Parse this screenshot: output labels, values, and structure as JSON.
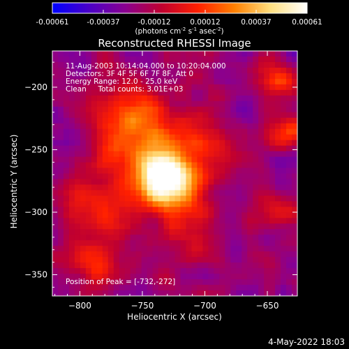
{
  "colorbar": {
    "ticks": [
      "-0.00061",
      "-0.00037",
      "-0.00012",
      "0.00012",
      "0.00037",
      "0.00061"
    ],
    "unit_parts": [
      "(photons cm",
      "-2",
      " s",
      "-1",
      " asec",
      "-2",
      ")"
    ],
    "stops": [
      "#0000ff",
      "#4a00c8",
      "#8a0090",
      "#c00030",
      "#ff2000",
      "#ff8000",
      "#ffe080",
      "#ffffff"
    ]
  },
  "chart_data": {
    "type": "heatmap",
    "title": "Reconstructed RHESSI Image",
    "xlabel": "Heliocentric X (arcsec)",
    "ylabel": "Heliocentric Y (arcsec)",
    "xlim": [
      -822,
      -626
    ],
    "ylim": [
      -367,
      -171
    ],
    "xticks": [
      -800,
      -750,
      -700,
      -650
    ],
    "yticks": [
      -200,
      -250,
      -300,
      -350
    ],
    "peak": {
      "x": -732,
      "y": -272
    },
    "colorbar_range": [
      -0.00061,
      0.00061
    ]
  },
  "info": {
    "line1": "11-Aug-2003 10:14:04.000 to 10:20:04.000",
    "line2": "Detectors: 3F 4F 5F 6F 7F 8F, Att 0",
    "line3": "Energy Range: 12.0 - 25.0 keV",
    "line4": "Clean     Total counts: 3.01E+03",
    "peak_text": "Position of Peak = [-732,-272]"
  },
  "footer": {
    "date": "4-May-2022 18:03"
  }
}
